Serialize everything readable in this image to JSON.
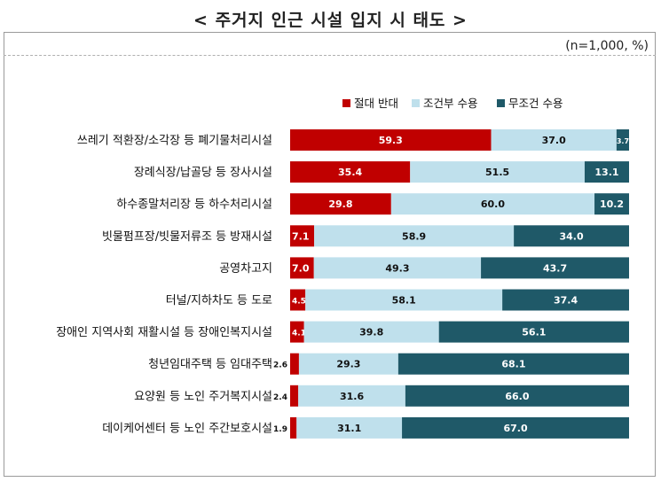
{
  "chart_data": {
    "type": "bar",
    "orientation": "horizontal",
    "stacked": true,
    "title": "< 주거지 인근 시설 입지 시 태도 >",
    "unit_note": "(n=1,000,  %)",
    "categories": [
      "쓰레기 적환장/소각장 등 폐기물처리시설",
      "장례식장/납골당 등 장사시설",
      "하수종말처리장 등 하수처리시설",
      "빗물펌프장/빗물저류조 등 방재시설",
      "공영차고지",
      "터널/지하차도 등 도로",
      "장애인 지역사회 재활시설 등 장애인복지시설",
      "청년임대주택 등 임대주택",
      "요양원 등 노인 주거복지시설",
      "데이케어센터 등 노인 주간보호시설"
    ],
    "series": [
      {
        "name": "절대 반대",
        "color": "#c00000",
        "values": [
          59.3,
          35.4,
          29.8,
          7.1,
          7.0,
          4.5,
          4.1,
          2.6,
          2.4,
          1.9
        ]
      },
      {
        "name": "조건부 수용",
        "color": "#bfe0ec",
        "values": [
          37.0,
          51.5,
          60.0,
          58.9,
          49.3,
          58.1,
          39.8,
          29.3,
          31.6,
          31.1
        ]
      },
      {
        "name": "무조건 수용",
        "color": "#1f5968",
        "values": [
          3.7,
          13.1,
          10.2,
          34.0,
          43.7,
          37.4,
          56.1,
          68.1,
          66.0,
          67.0
        ]
      }
    ],
    "xlim": [
      0,
      100
    ],
    "legend_position": "top-right",
    "grid": false
  }
}
